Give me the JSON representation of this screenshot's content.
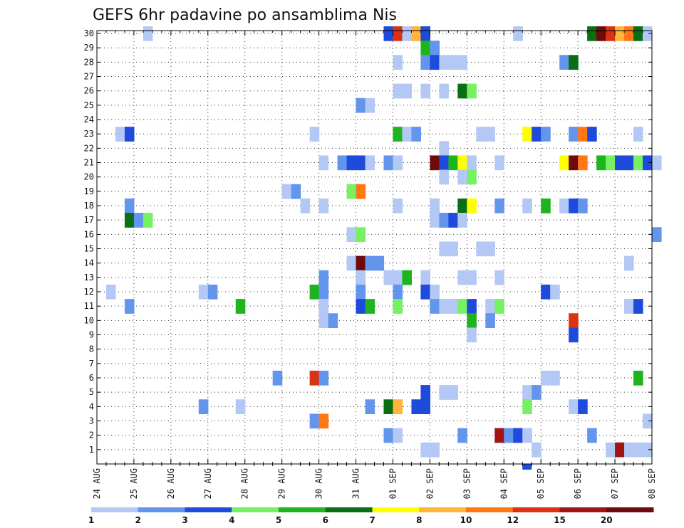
{
  "chart_data": {
    "type": "heatmap",
    "title": "GEFS 6hr padavine po ansamblima Nis",
    "x_ticks": [
      "24 AUG",
      "25 AUG",
      "26 AUG",
      "27 AUG",
      "28 AUG",
      "29 AUG",
      "30 AUG",
      "31 AUG",
      "01 SEP",
      "02 SEP",
      "03 SEP",
      "04 SEP",
      "05 SEP",
      "06 SEP",
      "07 SEP",
      "08 SEP"
    ],
    "y_ticks": [
      "1",
      "2",
      "3",
      "4",
      "5",
      "6",
      "7",
      "8",
      "9",
      "10",
      "11",
      "12",
      "13",
      "14",
      "15",
      "16",
      "17",
      "18",
      "19",
      "20",
      "21",
      "22",
      "23",
      "24",
      "25",
      "26",
      "27",
      "28",
      "29",
      "30"
    ],
    "x_step_hours": 6,
    "y_range": [
      1,
      30
    ],
    "grid": true,
    "colorbar": {
      "levels": [
        "1",
        "2",
        "3",
        "4",
        "5",
        "6",
        "7",
        "8",
        "10",
        "12",
        "15",
        "20"
      ],
      "colors": [
        "#b4c8f5",
        "#6495ed",
        "#1e4bdc",
        "#78f064",
        "#1eb41e",
        "#0a6e14",
        "#ffff00",
        "#ffb43c",
        "#ff7814",
        "#dc3214",
        "#a01414",
        "#6e0a0a"
      ]
    },
    "points": [
      [
        5,
        30,
        0
      ],
      [
        31,
        30,
        2
      ],
      [
        32,
        30,
        9
      ],
      [
        33,
        30,
        0
      ],
      [
        34,
        30,
        7
      ],
      [
        35,
        30,
        2
      ],
      [
        45,
        30,
        0
      ],
      [
        53,
        30,
        5
      ],
      [
        54,
        30,
        11
      ],
      [
        55,
        30,
        9
      ],
      [
        56,
        30,
        7
      ],
      [
        57,
        30,
        8
      ],
      [
        58,
        30,
        5
      ],
      [
        59,
        30,
        0
      ],
      [
        35,
        29,
        4
      ],
      [
        36,
        29,
        1
      ],
      [
        32,
        28,
        0
      ],
      [
        35,
        28,
        1
      ],
      [
        36,
        28,
        2
      ],
      [
        37,
        28,
        0
      ],
      [
        38,
        28,
        0
      ],
      [
        39,
        28,
        0
      ],
      [
        50,
        28,
        1
      ],
      [
        51,
        28,
        5
      ],
      [
        32,
        26,
        0
      ],
      [
        33,
        26,
        0
      ],
      [
        35,
        26,
        0
      ],
      [
        37,
        26,
        0
      ],
      [
        39,
        26,
        5
      ],
      [
        40,
        26,
        3
      ],
      [
        28,
        25,
        1
      ],
      [
        29,
        25,
        0
      ],
      [
        2,
        23,
        0
      ],
      [
        3,
        23,
        2
      ],
      [
        23,
        23,
        0
      ],
      [
        32,
        23,
        4
      ],
      [
        33,
        23,
        0
      ],
      [
        34,
        23,
        1
      ],
      [
        41,
        23,
        0
      ],
      [
        42,
        23,
        0
      ],
      [
        46,
        23,
        6
      ],
      [
        47,
        23,
        2
      ],
      [
        48,
        23,
        1
      ],
      [
        51,
        23,
        1
      ],
      [
        52,
        23,
        8
      ],
      [
        53,
        23,
        2
      ],
      [
        58,
        23,
        0
      ],
      [
        37,
        22,
        0
      ],
      [
        24,
        21,
        0
      ],
      [
        26,
        21,
        1
      ],
      [
        27,
        21,
        2
      ],
      [
        28,
        21,
        2
      ],
      [
        29,
        21,
        0
      ],
      [
        31,
        21,
        1
      ],
      [
        32,
        21,
        0
      ],
      [
        36,
        21,
        11
      ],
      [
        37,
        21,
        2
      ],
      [
        38,
        21,
        4
      ],
      [
        39,
        21,
        6
      ],
      [
        40,
        21,
        0
      ],
      [
        43,
        21,
        0
      ],
      [
        50,
        21,
        6
      ],
      [
        51,
        21,
        11
      ],
      [
        52,
        21,
        8
      ],
      [
        54,
        21,
        4
      ],
      [
        55,
        21,
        3
      ],
      [
        56,
        21,
        2
      ],
      [
        57,
        21,
        2
      ],
      [
        58,
        21,
        3
      ],
      [
        59,
        21,
        2
      ],
      [
        60,
        21,
        0
      ],
      [
        37,
        20,
        0
      ],
      [
        39,
        20,
        0
      ],
      [
        40,
        20,
        3
      ],
      [
        20,
        19,
        0
      ],
      [
        21,
        19,
        1
      ],
      [
        27,
        19,
        3
      ],
      [
        28,
        19,
        8
      ],
      [
        3,
        18,
        1
      ],
      [
        22,
        18,
        0
      ],
      [
        24,
        18,
        0
      ],
      [
        32,
        18,
        0
      ],
      [
        36,
        18,
        0
      ],
      [
        39,
        18,
        5
      ],
      [
        40,
        18,
        6
      ],
      [
        43,
        18,
        1
      ],
      [
        46,
        18,
        0
      ],
      [
        48,
        18,
        4
      ],
      [
        50,
        18,
        0
      ],
      [
        51,
        18,
        2
      ],
      [
        52,
        18,
        1
      ],
      [
        3,
        17,
        5
      ],
      [
        4,
        17,
        1
      ],
      [
        5,
        17,
        3
      ],
      [
        36,
        17,
        0
      ],
      [
        37,
        17,
        1
      ],
      [
        38,
        17,
        2
      ],
      [
        39,
        17,
        0
      ],
      [
        27,
        16,
        0
      ],
      [
        28,
        16,
        3
      ],
      [
        60,
        16,
        1
      ],
      [
        37,
        15,
        0
      ],
      [
        38,
        15,
        0
      ],
      [
        41,
        15,
        0
      ],
      [
        42,
        15,
        0
      ],
      [
        27,
        14,
        0
      ],
      [
        28,
        14,
        11
      ],
      [
        29,
        14,
        1
      ],
      [
        30,
        14,
        1
      ],
      [
        57,
        14,
        0
      ],
      [
        24,
        13,
        1
      ],
      [
        28,
        13,
        0
      ],
      [
        31,
        13,
        0
      ],
      [
        32,
        13,
        0
      ],
      [
        33,
        13,
        4
      ],
      [
        35,
        13,
        0
      ],
      [
        39,
        13,
        0
      ],
      [
        40,
        13,
        0
      ],
      [
        43,
        13,
        0
      ],
      [
        1,
        12,
        0
      ],
      [
        11,
        12,
        0
      ],
      [
        12,
        12,
        1
      ],
      [
        23,
        12,
        4
      ],
      [
        24,
        12,
        1
      ],
      [
        28,
        12,
        1
      ],
      [
        32,
        12,
        1
      ],
      [
        35,
        12,
        2
      ],
      [
        36,
        12,
        0
      ],
      [
        48,
        12,
        2
      ],
      [
        49,
        12,
        0
      ],
      [
        3,
        11,
        1
      ],
      [
        15,
        11,
        4
      ],
      [
        24,
        11,
        0
      ],
      [
        28,
        11,
        2
      ],
      [
        29,
        11,
        4
      ],
      [
        32,
        11,
        3
      ],
      [
        36,
        11,
        1
      ],
      [
        37,
        11,
        0
      ],
      [
        38,
        11,
        0
      ],
      [
        39,
        11,
        3
      ],
      [
        40,
        11,
        2
      ],
      [
        42,
        11,
        0
      ],
      [
        43,
        11,
        3
      ],
      [
        57,
        11,
        0
      ],
      [
        58,
        11,
        2
      ],
      [
        24,
        10,
        0
      ],
      [
        25,
        10,
        1
      ],
      [
        40,
        10,
        4
      ],
      [
        42,
        10,
        1
      ],
      [
        51,
        10,
        9
      ],
      [
        40,
        9,
        0
      ],
      [
        51,
        9,
        2
      ],
      [
        19,
        6,
        1
      ],
      [
        23,
        6,
        9
      ],
      [
        24,
        6,
        1
      ],
      [
        48,
        6,
        0
      ],
      [
        49,
        6,
        0
      ],
      [
        58,
        6,
        4
      ],
      [
        35,
        5,
        2
      ],
      [
        37,
        5,
        0
      ],
      [
        38,
        5,
        0
      ],
      [
        46,
        5,
        0
      ],
      [
        47,
        5,
        1
      ],
      [
        11,
        4,
        1
      ],
      [
        15,
        4,
        0
      ],
      [
        29,
        4,
        1
      ],
      [
        31,
        4,
        5
      ],
      [
        32,
        4,
        7
      ],
      [
        34,
        4,
        2
      ],
      [
        35,
        4,
        2
      ],
      [
        46,
        4,
        3
      ],
      [
        51,
        4,
        0
      ],
      [
        52,
        4,
        2
      ],
      [
        23,
        3,
        1
      ],
      [
        24,
        3,
        8
      ],
      [
        59,
        3,
        0
      ],
      [
        31,
        2,
        1
      ],
      [
        32,
        2,
        0
      ],
      [
        39,
        2,
        1
      ],
      [
        43,
        2,
        10
      ],
      [
        44,
        2,
        1
      ],
      [
        45,
        2,
        2
      ],
      [
        46,
        2,
        0
      ],
      [
        53,
        2,
        1
      ],
      [
        35,
        1,
        0
      ],
      [
        36,
        1,
        0
      ],
      [
        47,
        1,
        0
      ],
      [
        55,
        1,
        0
      ],
      [
        56,
        1,
        10
      ],
      [
        57,
        1,
        0
      ],
      [
        58,
        1,
        0
      ],
      [
        59,
        1,
        0
      ]
    ],
    "below_axis_points": [
      [
        46,
        2
      ]
    ]
  }
}
